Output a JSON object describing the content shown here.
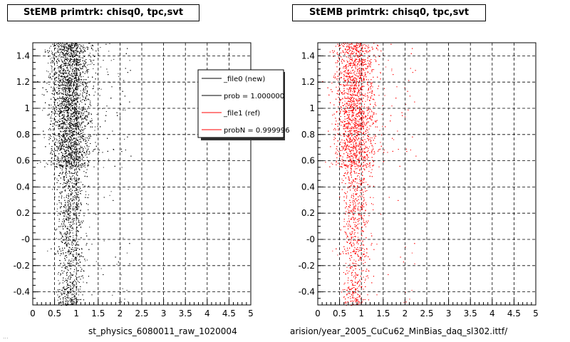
{
  "chart_data": [
    {
      "type": "scatter",
      "title": "StEMB primtrk: chisq0, tpc,svt",
      "xlabel": "st_physics_6080011_raw_1020004",
      "ylabel": "",
      "xlim": [
        0,
        5
      ],
      "ylim": [
        -0.5,
        1.5
      ],
      "xticks": [
        "0",
        "0.5",
        "1",
        "1.5",
        "2",
        "2.5",
        "3",
        "3.5",
        "4",
        "4.5",
        "5"
      ],
      "yticks": [
        "-0.4",
        "-0.2",
        "-0",
        "0.2",
        "0.4",
        "0.6",
        "0.8",
        "1",
        "1.2",
        "1.4"
      ],
      "grid": true,
      "legend_position": "top-right",
      "legend": [
        {
          "label": "_file0 (new)",
          "color": "#000000"
        },
        {
          "label": "prob = 1.000000",
          "color": "#000000"
        },
        {
          "label": "_file1 (ref)",
          "color": "#ff0000"
        },
        {
          "label": "probN = 0.999996",
          "color": "#ff0000"
        }
      ],
      "series": [
        {
          "color": "#000000",
          "x_center": 0.85,
          "x_spread": 0.3,
          "dense_y_range": [
            0.55,
            1.5
          ],
          "points": 9000
        }
      ]
    },
    {
      "type": "scatter",
      "title": "StEMB primtrk: chisq0, tpc,svt",
      "xlabel": "arision/year_2005_CuCu62_MinBias_daq_sl302.ittf/",
      "ylabel": "",
      "xlim": [
        0,
        5
      ],
      "ylim": [
        -0.5,
        1.5
      ],
      "xticks": [
        "0",
        "0.5",
        "1",
        "1.5",
        "2",
        "2.5",
        "3",
        "3.5",
        "4",
        "4.5",
        "5"
      ],
      "yticks": [
        "-0.4",
        "-0.2",
        "-0",
        "0.2",
        "0.4",
        "0.6",
        "0.8",
        "1",
        "1.2",
        "1.4"
      ],
      "grid": true,
      "series": [
        {
          "color": "#ff0000",
          "x_center": 0.85,
          "x_spread": 0.3,
          "dense_y_range": [
            0.55,
            1.5
          ],
          "points": 7000
        }
      ]
    }
  ],
  "footer": "..."
}
